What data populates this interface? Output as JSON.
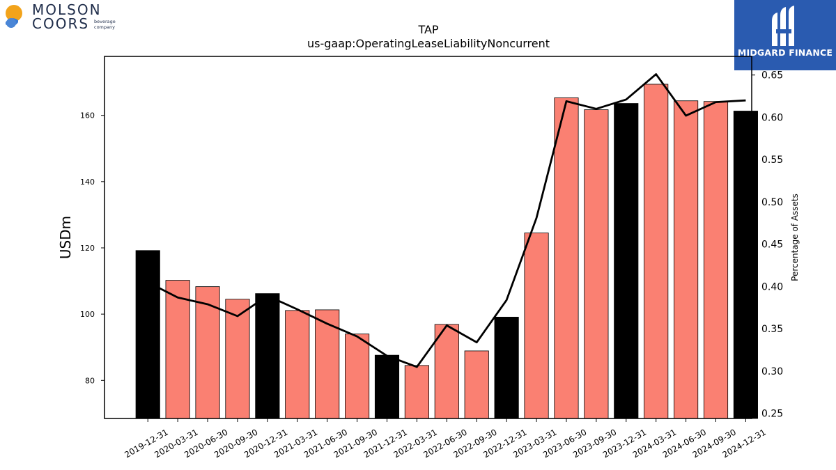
{
  "logos": {
    "left": {
      "line1": "MOLSON",
      "line2": "COORS",
      "tag1": "beverage",
      "tag2": "company"
    },
    "right": {
      "text": "MIDGARD FINANCE"
    }
  },
  "colors": {
    "bar_quarter": "#fa8072",
    "bar_year_end": "#000000",
    "line": "#000000",
    "brand_right": "#2a5bb0"
  },
  "chart_data": {
    "type": "bar",
    "title": "TAP",
    "subtitle": "us-gaap:OperatingLeaseLiabilityNoncurrent",
    "ylabel": "USDm",
    "y2label": "Percentage of Assets",
    "ylim": [
      68.5,
      177.8
    ],
    "y2lim": [
      0.244,
      0.672
    ],
    "yticks": [
      80,
      100,
      120,
      140,
      160
    ],
    "y2ticks": [
      0.25,
      0.3,
      0.35,
      0.4,
      0.45,
      0.5,
      0.55,
      0.6,
      0.65
    ],
    "categories": [
      "2019-12-31",
      "2020-03-31",
      "2020-06-30",
      "2020-09-30",
      "2020-12-31",
      "2021-03-31",
      "2021-06-30",
      "2021-09-30",
      "2021-12-31",
      "2022-03-31",
      "2022-06-30",
      "2022-09-30",
      "2022-12-31",
      "2023-03-31",
      "2023-06-30",
      "2023-09-30",
      "2023-12-31",
      "2024-03-31",
      "2024-06-30",
      "2024-09-30",
      "2024-12-31"
    ],
    "series": [
      {
        "type": "bar",
        "values": [
          119.2,
          110.2,
          108.3,
          104.5,
          106.2,
          101.1,
          101.3,
          94.0,
          87.6,
          84.5,
          96.9,
          88.9,
          99.1,
          124.5,
          165.3,
          161.7,
          163.6,
          169.4,
          164.4,
          164.2,
          161.3
        ],
        "year_end": [
          true,
          false,
          false,
          false,
          true,
          false,
          false,
          false,
          true,
          false,
          false,
          false,
          true,
          false,
          false,
          false,
          true,
          false,
          false,
          false,
          true
        ]
      },
      {
        "type": "line",
        "axis": "right",
        "values": [
          0.405,
          0.387,
          0.379,
          0.365,
          0.389,
          0.373,
          0.356,
          0.341,
          0.318,
          0.305,
          0.354,
          0.334,
          0.384,
          0.481,
          0.619,
          0.61,
          0.621,
          0.651,
          0.602,
          0.618,
          0.62
        ]
      }
    ],
    "grid": false,
    "legend": "none"
  }
}
